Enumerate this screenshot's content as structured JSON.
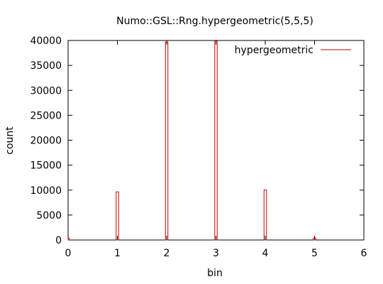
{
  "chart_data": {
    "type": "bar",
    "title": "Numo::GSL::Rng.hypergeometric(5,5,5)",
    "xlabel": "bin",
    "ylabel": "count",
    "xlim": [
      0,
      6
    ],
    "ylim": [
      0,
      40000
    ],
    "x_ticks": [
      "0",
      "1",
      "2",
      "3",
      "4",
      "5",
      "6"
    ],
    "y_ticks": [
      "0",
      "5000",
      "10000",
      "15000",
      "20000",
      "25000",
      "30000",
      "35000",
      "40000"
    ],
    "grid": false,
    "legend_position": "top-right",
    "bar_color": "#cc0000",
    "series": [
      {
        "name": "hypergeometric",
        "x": [
          0,
          1,
          2,
          3,
          4,
          5
        ],
        "values": [
          400,
          9650,
          39700,
          39900,
          10050,
          400
        ]
      }
    ]
  }
}
